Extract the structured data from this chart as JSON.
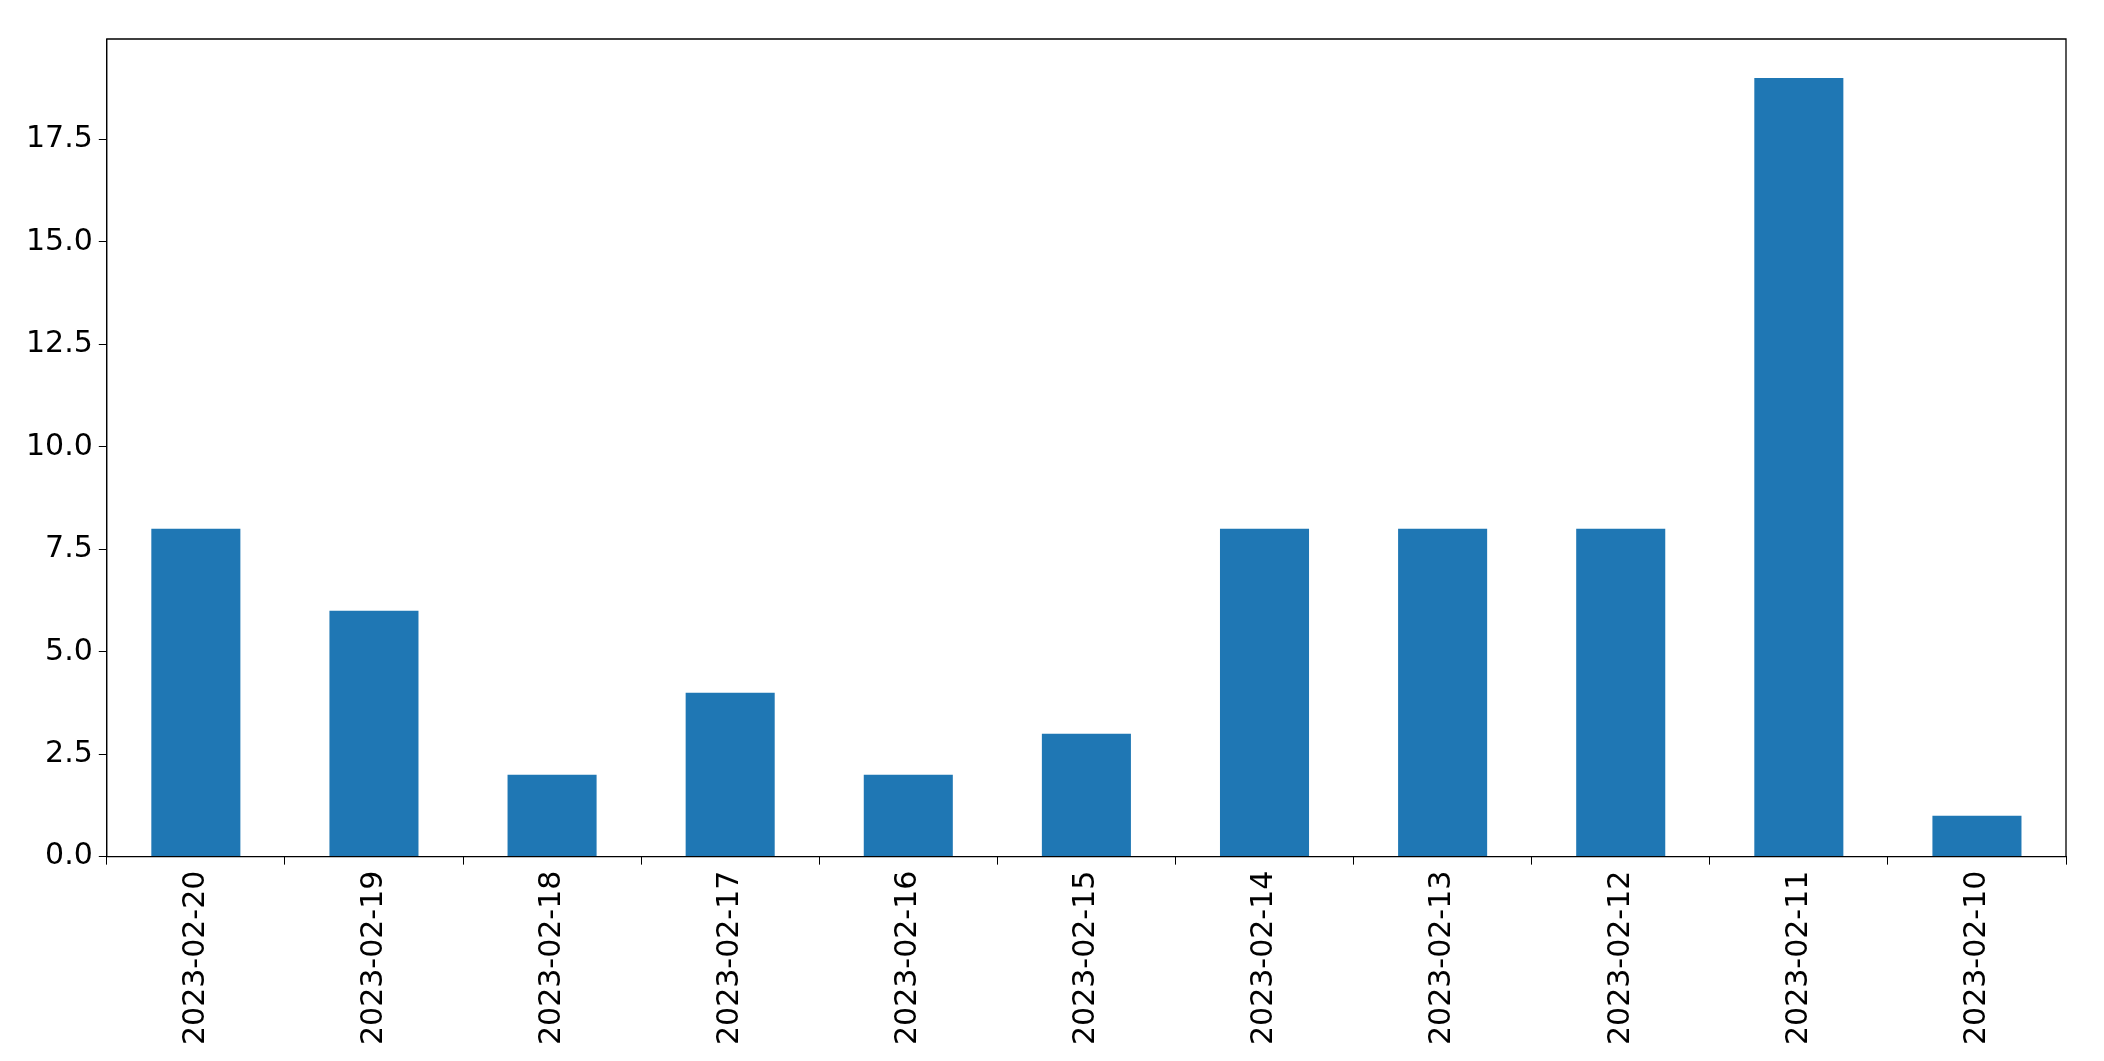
{
  "chart_data": {
    "type": "bar",
    "categories": [
      "2023-02-20",
      "2023-02-19",
      "2023-02-18",
      "2023-02-17",
      "2023-02-16",
      "2023-02-15",
      "2023-02-14",
      "2023-02-13",
      "2023-02-12",
      "2023-02-11",
      "2023-02-10"
    ],
    "values": [
      8,
      6,
      2,
      4,
      2,
      3,
      8,
      8,
      8,
      19,
      1
    ],
    "color": "#1f77b4",
    "ylim": [
      0,
      19.95
    ],
    "yticks": [
      {
        "value": 0,
        "label": "0.0"
      },
      {
        "value": 2.5,
        "label": "2.5"
      },
      {
        "value": 5,
        "label": "5.0"
      },
      {
        "value": 7.5,
        "label": "7.5"
      },
      {
        "value": 10,
        "label": "10.0"
      },
      {
        "value": 12.5,
        "label": "12.5"
      },
      {
        "value": 15,
        "label": "15.0"
      },
      {
        "value": 17.5,
        "label": "17.5"
      }
    ],
    "grid": false,
    "legend": false
  }
}
